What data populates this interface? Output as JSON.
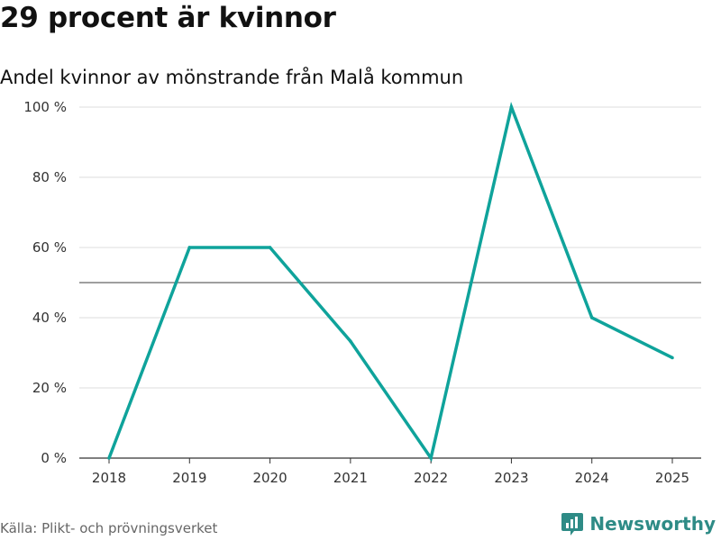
{
  "title": "29 procent är kvinnor",
  "subtitle": "Andel kvinnor av mönstrande från Malå kommun",
  "source": "Källa: Plikt- och prövningsverket",
  "brand": {
    "name": "Newsworthy",
    "icon": "newsworthy-logo-icon"
  },
  "colors": {
    "line": "#0fa39b",
    "reference_line": "#666666",
    "grid": "#dddddd",
    "brand": "#2e8b86"
  },
  "chart_data": {
    "type": "line",
    "categories": [
      "2018",
      "2019",
      "2020",
      "2021",
      "2022",
      "2023",
      "2024",
      "2025"
    ],
    "series": [
      {
        "values": [
          0,
          60,
          60,
          33.3,
          0,
          100,
          40,
          28.6
        ]
      }
    ],
    "ylim": [
      0,
      100
    ],
    "yticks": [
      0,
      20,
      40,
      60,
      80,
      100
    ],
    "ytick_labels": [
      "0 %",
      "20 %",
      "40 %",
      "60 %",
      "80 %",
      "100 %"
    ],
    "reference_line": 50,
    "grid": true,
    "legend": "none",
    "xlabel": "",
    "ylabel": ""
  }
}
